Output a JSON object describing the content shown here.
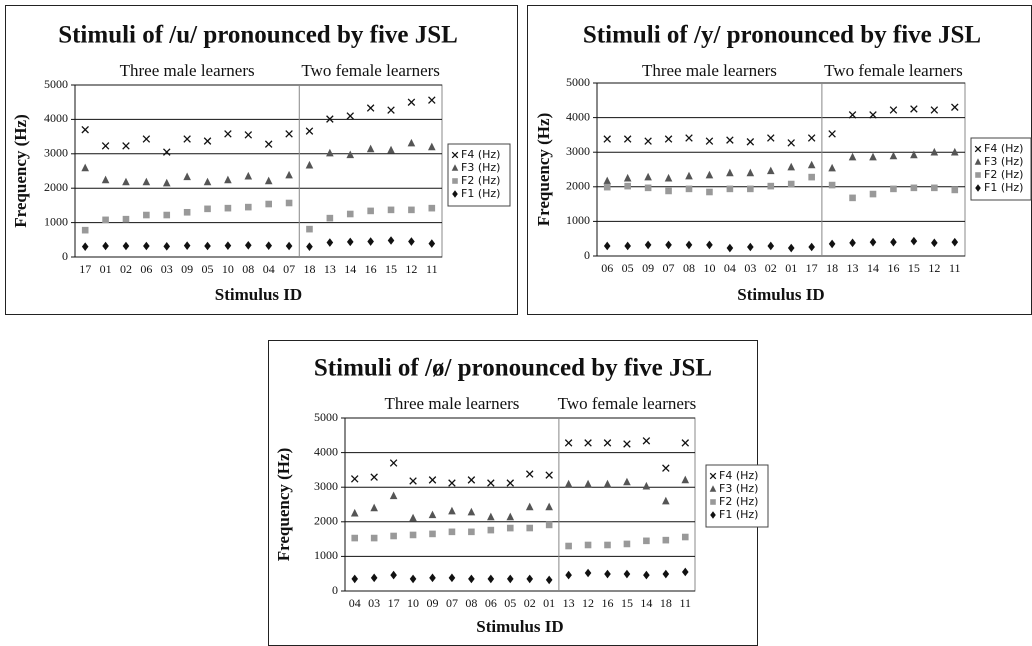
{
  "chart_data": [
    {
      "type": "scatter",
      "title": "Stimuli of /u/ pronounced by five JSL",
      "groups": [
        {
          "label": "Three male learners",
          "categories": [
            "17",
            "01",
            "02",
            "06",
            "03",
            "09",
            "05",
            "10",
            "08",
            "04",
            "07"
          ]
        },
        {
          "label": "Two female learners",
          "categories": [
            "18",
            "13",
            "14",
            "16",
            "15",
            "12",
            "11"
          ]
        }
      ],
      "x_label": "Stimulus ID",
      "y_label": "Frequency (Hz)",
      "ylim": [
        0,
        5000
      ],
      "yticks": [
        0,
        1000,
        2000,
        3000,
        4000,
        5000
      ],
      "grid": true,
      "series": [
        {
          "name": "F4 (Hz)",
          "color": "#111111",
          "marker": "x",
          "values": [
            3700,
            3230,
            3230,
            3430,
            3050,
            3430,
            3370,
            3580,
            3550,
            3280,
            3580,
            3660,
            4010,
            4100,
            4330,
            4270,
            4500,
            4560
          ]
        },
        {
          "name": "F3 (Hz)",
          "color": "#555555",
          "marker": "triangle",
          "values": [
            2590,
            2240,
            2180,
            2180,
            2150,
            2330,
            2180,
            2240,
            2350,
            2210,
            2380,
            2670,
            3020,
            2970,
            3140,
            3110,
            3310,
            3200
          ]
        },
        {
          "name": "F2 (Hz)",
          "color": "#999999",
          "marker": "square",
          "values": [
            780,
            1080,
            1100,
            1220,
            1220,
            1300,
            1400,
            1420,
            1450,
            1540,
            1570,
            810,
            1130,
            1250,
            1340,
            1370,
            1370,
            1420
          ]
        },
        {
          "name": "F1 (Hz)",
          "color": "#111111",
          "marker": "diamond",
          "values": [
            300,
            320,
            320,
            320,
            310,
            330,
            320,
            330,
            340,
            330,
            320,
            300,
            420,
            440,
            450,
            480,
            450,
            390
          ]
        }
      ]
    },
    {
      "type": "scatter",
      "title": "Stimuli of /y/ pronounced by five JSL",
      "groups": [
        {
          "label": "Three male learners",
          "categories": [
            "06",
            "05",
            "09",
            "07",
            "08",
            "10",
            "04",
            "03",
            "02",
            "01",
            "17"
          ]
        },
        {
          "label": "Two female learners",
          "categories": [
            "18",
            "13",
            "14",
            "16",
            "15",
            "12",
            "11"
          ]
        }
      ],
      "x_label": "Stimulus ID",
      "y_label": "Frequency (Hz)",
      "ylim": [
        0,
        5000
      ],
      "yticks": [
        0,
        1000,
        2000,
        3000,
        4000,
        5000
      ],
      "grid": true,
      "series": [
        {
          "name": "F4 (Hz)",
          "color": "#111111",
          "marker": "x",
          "values": [
            3380,
            3380,
            3320,
            3380,
            3410,
            3320,
            3350,
            3300,
            3410,
            3270,
            3410,
            3530,
            4080,
            4080,
            4220,
            4250,
            4220,
            4300
          ]
        },
        {
          "name": "F3 (Hz)",
          "color": "#555555",
          "marker": "triangle",
          "values": [
            2170,
            2250,
            2280,
            2250,
            2310,
            2340,
            2400,
            2400,
            2460,
            2570,
            2630,
            2540,
            2860,
            2860,
            2890,
            2920,
            3000,
            3000
          ]
        },
        {
          "name": "F2 (Hz)",
          "color": "#999999",
          "marker": "square",
          "values": [
            1990,
            2020,
            1970,
            1880,
            1940,
            1850,
            1940,
            1940,
            2020,
            2080,
            2280,
            2050,
            1680,
            1790,
            1940,
            1970,
            1970,
            1910
          ]
        },
        {
          "name": "F1 (Hz)",
          "color": "#111111",
          "marker": "diamond",
          "values": [
            290,
            290,
            320,
            320,
            320,
            320,
            230,
            260,
            290,
            230,
            260,
            350,
            380,
            400,
            400,
            430,
            380,
            400
          ]
        }
      ]
    },
    {
      "type": "scatter",
      "title": "Stimuli of /ø/ pronounced by five JSL",
      "groups": [
        {
          "label": "Three male learners",
          "categories": [
            "04",
            "03",
            "17",
            "10",
            "09",
            "07",
            "08",
            "06",
            "05",
            "02",
            "01"
          ]
        },
        {
          "label": "Two female learners",
          "categories": [
            "13",
            "12",
            "16",
            "15",
            "14",
            "18",
            "11"
          ]
        }
      ],
      "x_label": "Stimulus ID",
      "y_label": "Frequency (Hz)",
      "ylim": [
        0,
        5000
      ],
      "yticks": [
        0,
        1000,
        2000,
        3000,
        4000,
        5000
      ],
      "grid": true,
      "series": [
        {
          "name": "F4 (Hz)",
          "color": "#111111",
          "marker": "x",
          "values": [
            3240,
            3290,
            3700,
            3180,
            3210,
            3120,
            3210,
            3120,
            3120,
            3380,
            3350,
            4280,
            4280,
            4280,
            4250,
            4340,
            3550,
            4280
          ]
        },
        {
          "name": "F3 (Hz)",
          "color": "#555555",
          "marker": "triangle",
          "values": [
            2250,
            2400,
            2750,
            2110,
            2200,
            2310,
            2280,
            2140,
            2140,
            2430,
            2430,
            3090,
            3090,
            3090,
            3150,
            3030,
            2600,
            3210
          ]
        },
        {
          "name": "F2 (Hz)",
          "color": "#999999",
          "marker": "square",
          "values": [
            1530,
            1530,
            1590,
            1620,
            1650,
            1710,
            1710,
            1760,
            1820,
            1820,
            1910,
            1300,
            1330,
            1330,
            1360,
            1450,
            1470,
            1560
          ]
        },
        {
          "name": "F1 (Hz)",
          "color": "#111111",
          "marker": "diamond",
          "values": [
            350,
            380,
            460,
            350,
            380,
            380,
            350,
            350,
            350,
            350,
            320,
            460,
            520,
            490,
            490,
            460,
            490,
            550
          ]
        }
      ]
    }
  ]
}
